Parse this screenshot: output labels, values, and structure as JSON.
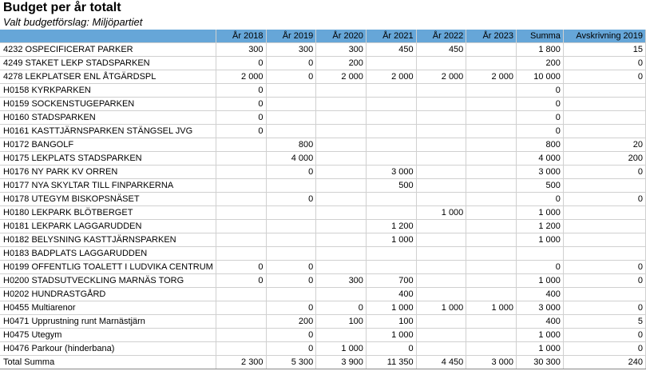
{
  "title": "Budget per år totalt",
  "subtitle": "Valt budgetförslag: Miljöpartiet",
  "columns": [
    "",
    "År 2018",
    "År 2019",
    "År 2020",
    "År 2021",
    "År 2022",
    "År 2023",
    "Summa",
    "Avskrivning 2019"
  ],
  "rows": [
    [
      "4232 OSPECIFICERAT PARKER",
      "300",
      "300",
      "300",
      "450",
      "450",
      "",
      "1 800",
      "15"
    ],
    [
      "4249 STAKET LEKP STADSPARKEN",
      "0",
      "0",
      "200",
      "",
      "",
      "",
      "200",
      "0"
    ],
    [
      "4278 LEKPLATSER ENL ÅTGÄRDSPL",
      "2 000",
      "0",
      "2 000",
      "2 000",
      "2 000",
      "2 000",
      "10 000",
      "0"
    ],
    [
      "H0158 KYRKPARKEN",
      "0",
      "",
      "",
      "",
      "",
      "",
      "0",
      ""
    ],
    [
      "H0159 SOCKENSTUGEPARKEN",
      "0",
      "",
      "",
      "",
      "",
      "",
      "0",
      ""
    ],
    [
      "H0160 STADSPARKEN",
      "0",
      "",
      "",
      "",
      "",
      "",
      "0",
      ""
    ],
    [
      "H0161 KASTTJÄRNSPARKEN STÄNGSEL JVG",
      "0",
      "",
      "",
      "",
      "",
      "",
      "0",
      ""
    ],
    [
      "H0172 BANGOLF",
      "",
      "800",
      "",
      "",
      "",
      "",
      "800",
      "20"
    ],
    [
      "H0175 LEKPLATS STADSPARKEN",
      "",
      "4 000",
      "",
      "",
      "",
      "",
      "4 000",
      "200"
    ],
    [
      "H0176 NY PARK KV ORREN",
      "",
      "0",
      "",
      "3 000",
      "",
      "",
      "3 000",
      "0"
    ],
    [
      "H0177 NYA SKYLTAR TILL FINPARKERNA",
      "",
      "",
      "",
      "500",
      "",
      "",
      "500",
      ""
    ],
    [
      "H0178 UTEGYM BISKOPSNÄSET",
      "",
      "0",
      "",
      "",
      "",
      "",
      "0",
      "0"
    ],
    [
      "H0180 LEKPARK BLÖTBERGET",
      "",
      "",
      "",
      "",
      "1 000",
      "",
      "1 000",
      ""
    ],
    [
      "H0181 LEKPARK LAGGARUDDEN",
      "",
      "",
      "",
      "1 200",
      "",
      "",
      "1 200",
      ""
    ],
    [
      "H0182 BELYSNING KASTTJÄRNSPARKEN",
      "",
      "",
      "",
      "1 000",
      "",
      "",
      "1 000",
      ""
    ],
    [
      "H0183 BADPLATS LAGGARUDDEN",
      "",
      "",
      "",
      "",
      "",
      "",
      "",
      ""
    ],
    [
      "H0199 OFFENTLIG TOALETT I LUDVIKA CENTRUM",
      "0",
      "0",
      "",
      "",
      "",
      "",
      "0",
      "0"
    ],
    [
      "H0200 STADSUTVECKLING MARNÄS TORG",
      "0",
      "0",
      "300",
      "700",
      "",
      "",
      "1 000",
      "0"
    ],
    [
      "H0202 HUNDRASTGÅRD",
      "",
      "",
      "",
      "400",
      "",
      "",
      "400",
      ""
    ],
    [
      "H0455 Multiarenor",
      "",
      "0",
      "0",
      "1 000",
      "1 000",
      "1 000",
      "3 000",
      "0"
    ],
    [
      "H0471 Upprustning runt Marnästjärn",
      "",
      "200",
      "100",
      "100",
      "",
      "",
      "400",
      "5"
    ],
    [
      "H0475 Utegym",
      "",
      "0",
      "",
      "1 000",
      "",
      "",
      "1 000",
      "0"
    ],
    [
      "H0476 Parkour (hinderbana)",
      "",
      "0",
      "1 000",
      "0",
      "",
      "",
      "1 000",
      "0"
    ],
    [
      "Total Summa",
      "2 300",
      "5 300",
      "3 900",
      "11 350",
      "4 450",
      "3 000",
      "30 300",
      "240"
    ]
  ],
  "colors": {
    "header_bg": "#66a6d8",
    "grid_line": "#d0d0d0"
  }
}
